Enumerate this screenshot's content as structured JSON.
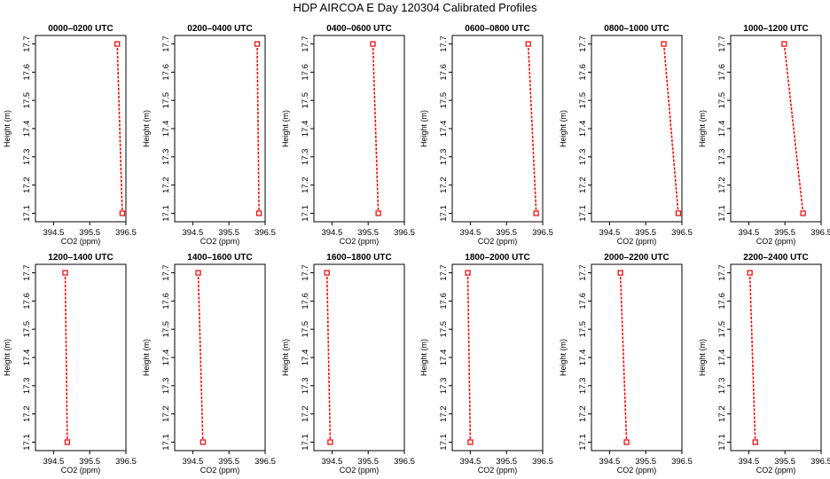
{
  "figure": {
    "title": "HDP AIRCOA E  Day 120304  Calibrated Profiles"
  },
  "style": {
    "line_color": "#ee1111",
    "marker_color": "#ee1111",
    "axis_color": "#000000"
  },
  "chart_data": [
    {
      "type": "line",
      "title": "0000–0200 UTC",
      "xlabel": "CO2 (ppm)",
      "ylabel": "Height (m)",
      "xlim": [
        394.0,
        396.5
      ],
      "ylim": [
        17.07,
        17.73
      ],
      "xticks": [
        "394.5",
        "395.5",
        "396.5"
      ],
      "yticks": [
        "17.1",
        "17.2",
        "17.3",
        "17.4",
        "17.5",
        "17.6",
        "17.7"
      ],
      "x": [
        396.26,
        396.4
      ],
      "y": [
        17.7,
        17.1
      ],
      "markers": true,
      "grid": false
    },
    {
      "type": "line",
      "title": "0200–0400 UTC",
      "xlabel": "CO2 (ppm)",
      "ylabel": "Height (m)",
      "xlim": [
        394.0,
        396.5
      ],
      "ylim": [
        17.07,
        17.73
      ],
      "xticks": [
        "394.5",
        "395.5",
        "396.5"
      ],
      "yticks": [
        "17.1",
        "17.2",
        "17.3",
        "17.4",
        "17.5",
        "17.6",
        "17.7"
      ],
      "x": [
        396.28,
        396.33
      ],
      "y": [
        17.7,
        17.1
      ],
      "markers": true,
      "grid": false
    },
    {
      "type": "line",
      "title": "0400–0600 UTC",
      "xlabel": "CO2 (ppm)",
      "ylabel": "Height (m)",
      "xlim": [
        394.0,
        396.5
      ],
      "ylim": [
        17.07,
        17.73
      ],
      "xticks": [
        "394.5",
        "395.5",
        "396.5"
      ],
      "yticks": [
        "17.1",
        "17.2",
        "17.3",
        "17.4",
        "17.5",
        "17.6",
        "17.7"
      ],
      "x": [
        395.63,
        395.78
      ],
      "y": [
        17.7,
        17.1
      ],
      "markers": true,
      "grid": false
    },
    {
      "type": "line",
      "title": "0600–0800 UTC",
      "xlabel": "CO2 (ppm)",
      "ylabel": "Height (m)",
      "xlim": [
        394.0,
        396.5
      ],
      "ylim": [
        17.07,
        17.73
      ],
      "xticks": [
        "394.5",
        "395.5",
        "396.5"
      ],
      "yticks": [
        "17.1",
        "17.2",
        "17.3",
        "17.4",
        "17.5",
        "17.6",
        "17.7"
      ],
      "x": [
        396.1,
        396.32
      ],
      "y": [
        17.7,
        17.1
      ],
      "markers": true,
      "grid": false
    },
    {
      "type": "line",
      "title": "0800–1000 UTC",
      "xlabel": "CO2 (ppm)",
      "ylabel": "Height (m)",
      "xlim": [
        394.0,
        396.5
      ],
      "ylim": [
        17.07,
        17.73
      ],
      "xticks": [
        "394.5",
        "395.5",
        "396.5"
      ],
      "yticks": [
        "17.1",
        "17.2",
        "17.3",
        "17.4",
        "17.5",
        "17.6",
        "17.7"
      ],
      "x": [
        396.0,
        396.4
      ],
      "y": [
        17.7,
        17.1
      ],
      "markers": true,
      "grid": false
    },
    {
      "type": "line",
      "title": "1000–1200 UTC",
      "xlabel": "CO2 (ppm)",
      "ylabel": "Height (m)",
      "xlim": [
        394.0,
        396.5
      ],
      "ylim": [
        17.07,
        17.73
      ],
      "xticks": [
        "394.5",
        "395.5",
        "396.5"
      ],
      "yticks": [
        "17.1",
        "17.2",
        "17.3",
        "17.4",
        "17.5",
        "17.6",
        "17.7"
      ],
      "x": [
        395.48,
        396.0
      ],
      "y": [
        17.7,
        17.1
      ],
      "markers": true,
      "grid": false
    },
    {
      "type": "line",
      "title": "1200–1400 UTC",
      "xlabel": "CO2 (ppm)",
      "ylabel": "Height (m)",
      "xlim": [
        394.0,
        396.5
      ],
      "ylim": [
        17.07,
        17.73
      ],
      "xticks": [
        "394.5",
        "395.5",
        "396.5"
      ],
      "yticks": [
        "17.1",
        "17.2",
        "17.3",
        "17.4",
        "17.5",
        "17.6",
        "17.7"
      ],
      "x": [
        394.82,
        394.88
      ],
      "y": [
        17.7,
        17.1
      ],
      "markers": true,
      "grid": false
    },
    {
      "type": "line",
      "title": "1400–1600 UTC",
      "xlabel": "CO2 (ppm)",
      "ylabel": "Height (m)",
      "xlim": [
        394.0,
        396.5
      ],
      "ylim": [
        17.07,
        17.73
      ],
      "xticks": [
        "394.5",
        "395.5",
        "396.5"
      ],
      "yticks": [
        "17.1",
        "17.2",
        "17.3",
        "17.4",
        "17.5",
        "17.6",
        "17.7"
      ],
      "x": [
        394.65,
        394.78
      ],
      "y": [
        17.7,
        17.1
      ],
      "markers": true,
      "grid": false
    },
    {
      "type": "line",
      "title": "1600–1800 UTC",
      "xlabel": "CO2 (ppm)",
      "ylabel": "Height (m)",
      "xlim": [
        394.0,
        396.5
      ],
      "ylim": [
        17.07,
        17.73
      ],
      "xticks": [
        "394.5",
        "395.5",
        "396.5"
      ],
      "yticks": [
        "17.1",
        "17.2",
        "17.3",
        "17.4",
        "17.5",
        "17.6",
        "17.7"
      ],
      "x": [
        394.36,
        394.45
      ],
      "y": [
        17.7,
        17.1
      ],
      "markers": true,
      "grid": false
    },
    {
      "type": "line",
      "title": "1800–2000 UTC",
      "xlabel": "CO2 (ppm)",
      "ylabel": "Height (m)",
      "xlim": [
        394.0,
        396.5
      ],
      "ylim": [
        17.07,
        17.73
      ],
      "xticks": [
        "394.5",
        "395.5",
        "396.5"
      ],
      "yticks": [
        "17.1",
        "17.2",
        "17.3",
        "17.4",
        "17.5",
        "17.6",
        "17.7"
      ],
      "x": [
        394.43,
        394.5
      ],
      "y": [
        17.7,
        17.1
      ],
      "markers": true,
      "grid": false
    },
    {
      "type": "line",
      "title": "2000–2200 UTC",
      "xlabel": "CO2 (ppm)",
      "ylabel": "Height (m)",
      "xlim": [
        394.0,
        396.5
      ],
      "ylim": [
        17.07,
        17.73
      ],
      "xticks": [
        "394.5",
        "395.5",
        "396.5"
      ],
      "yticks": [
        "17.1",
        "17.2",
        "17.3",
        "17.4",
        "17.5",
        "17.6",
        "17.7"
      ],
      "x": [
        394.8,
        394.97
      ],
      "y": [
        17.7,
        17.1
      ],
      "markers": true,
      "grid": false
    },
    {
      "type": "line",
      "title": "2200–2400 UTC",
      "xlabel": "CO2 (ppm)",
      "ylabel": "Height (m)",
      "xlim": [
        394.0,
        396.5
      ],
      "ylim": [
        17.07,
        17.73
      ],
      "xticks": [
        "394.5",
        "395.5",
        "396.5"
      ],
      "yticks": [
        "17.1",
        "17.2",
        "17.3",
        "17.4",
        "17.5",
        "17.6",
        "17.7"
      ],
      "x": [
        394.53,
        394.68
      ],
      "y": [
        17.7,
        17.1
      ],
      "markers": true,
      "grid": false
    }
  ]
}
